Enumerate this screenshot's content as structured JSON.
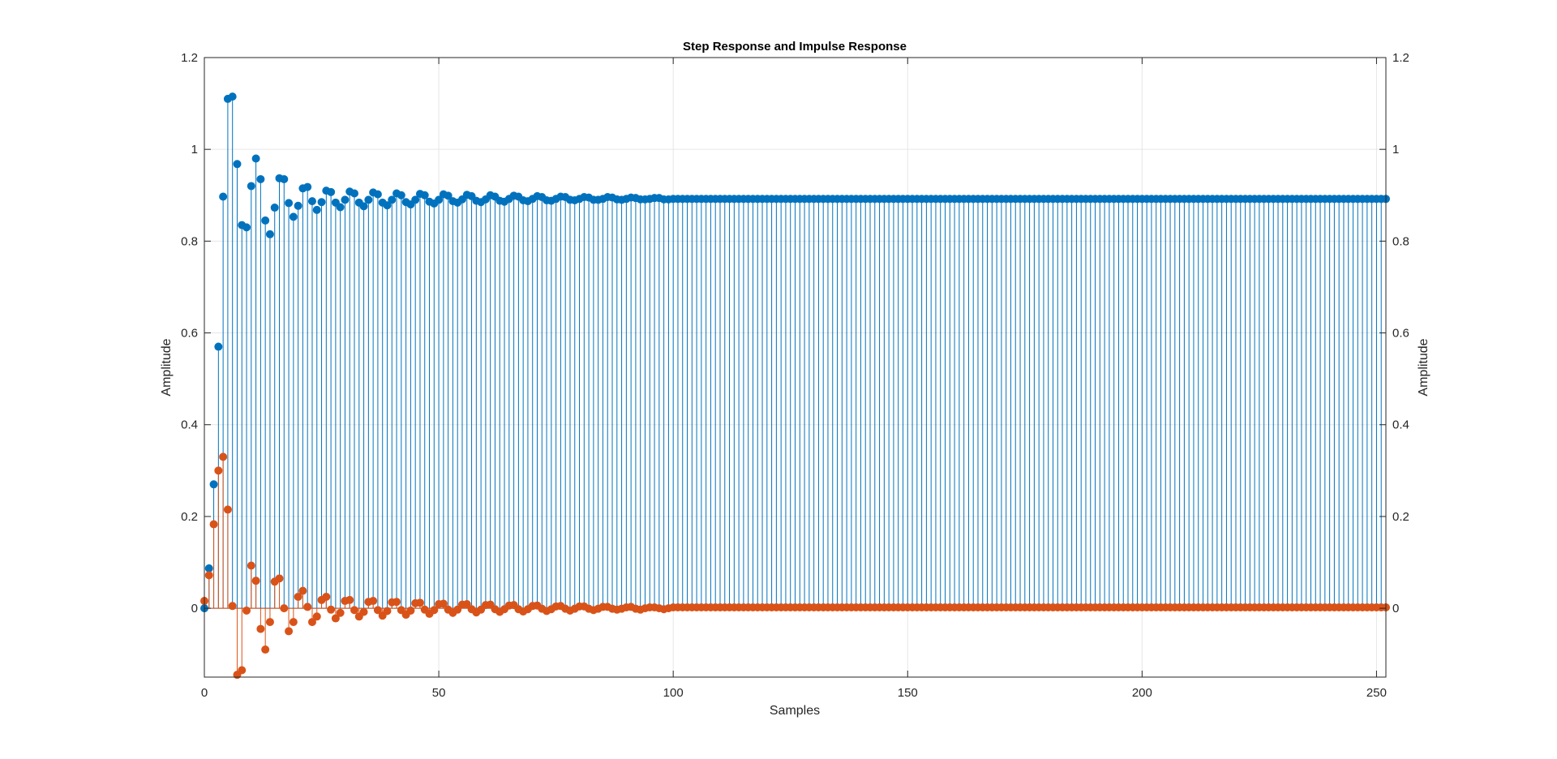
{
  "chart_data": {
    "type": "stem",
    "title": "Step Response and Impulse Response",
    "xlabel": "Samples",
    "ylabel_left": "Amplitude",
    "ylabel_right": "Amplitude",
    "xlim": [
      0,
      252
    ],
    "ylim": [
      -0.15,
      1.2
    ],
    "xticks": [
      0,
      50,
      100,
      150,
      200,
      250
    ],
    "yticks": [
      0,
      0.2,
      0.4,
      0.6,
      0.8,
      1,
      1.2
    ],
    "grid": true,
    "colors": {
      "step": "#0072BD",
      "impulse": "#D95319",
      "grid": "#E6E6E6",
      "axis": "#262626"
    },
    "series": [
      {
        "name": "",
        "key": "step",
        "x_start": 0,
        "x_step": 1,
        "values": [
          0,
          0.087,
          0.27,
          0.57,
          0.897,
          1.11,
          1.115,
          0.968,
          0.835,
          0.83,
          0.92,
          0.98,
          0.935,
          0.845,
          0.815,
          0.873,
          0.937,
          0.935,
          0.883,
          0.853,
          0.877,
          0.915,
          0.918,
          0.887,
          0.868,
          0.885,
          0.91,
          0.907,
          0.884,
          0.874,
          0.89,
          0.908,
          0.904,
          0.884,
          0.876,
          0.89,
          0.906,
          0.902,
          0.884,
          0.878,
          0.89,
          0.904,
          0.9,
          0.885,
          0.88,
          0.89,
          0.903,
          0.9,
          0.886,
          0.882,
          0.89,
          0.902,
          0.899,
          0.887,
          0.884,
          0.891,
          0.901,
          0.898,
          0.888,
          0.885,
          0.891,
          0.9,
          0.897,
          0.888,
          0.886,
          0.892,
          0.899,
          0.897,
          0.889,
          0.887,
          0.892,
          0.898,
          0.896,
          0.889,
          0.888,
          0.892,
          0.897,
          0.896,
          0.89,
          0.889,
          0.892,
          0.896,
          0.895,
          0.89,
          0.89,
          0.892,
          0.896,
          0.895,
          0.891,
          0.89,
          0.892,
          0.895,
          0.894,
          0.891,
          0.891,
          0.892,
          0.894,
          0.894,
          0.891,
          0.891,
          0.892
        ]
      },
      {
        "name": "",
        "key": "impulse",
        "x_start": 0,
        "x_step": 1,
        "values": [
          0.016,
          0.072,
          0.183,
          0.3,
          0.33,
          0.215,
          0.005,
          -0.145,
          -0.135,
          -0.005,
          0.093,
          0.06,
          -0.045,
          -0.09,
          -0.03,
          0.058,
          0.065,
          0.0,
          -0.05,
          -0.03,
          0.025,
          0.038,
          0.003,
          -0.03,
          -0.018,
          0.018,
          0.025,
          -0.003,
          -0.022,
          -0.01,
          0.016,
          0.018,
          -0.004,
          -0.018,
          -0.008,
          0.014,
          0.016,
          -0.004,
          -0.016,
          -0.006,
          0.013,
          0.014,
          -0.004,
          -0.014,
          -0.005,
          0.011,
          0.012,
          -0.003,
          -0.012,
          -0.004,
          0.009,
          0.01,
          -0.003,
          -0.01,
          -0.003,
          0.008,
          0.009,
          -0.002,
          -0.009,
          -0.003,
          0.007,
          0.008,
          -0.002,
          -0.008,
          -0.002,
          0.006,
          0.007,
          -0.002,
          -0.007,
          -0.002,
          0.005,
          0.006,
          -0.001,
          -0.006,
          -0.002,
          0.004,
          0.005,
          -0.001,
          -0.005,
          -0.001,
          0.004,
          0.004,
          -0.001,
          -0.004,
          -0.001,
          0.003,
          0.003,
          -0.001,
          -0.003,
          -0.001,
          0.002,
          0.003,
          -0.001,
          -0.003,
          0.0,
          0.002,
          0.002,
          0.0,
          -0.002,
          0.0,
          0.002
        ]
      }
    ]
  }
}
